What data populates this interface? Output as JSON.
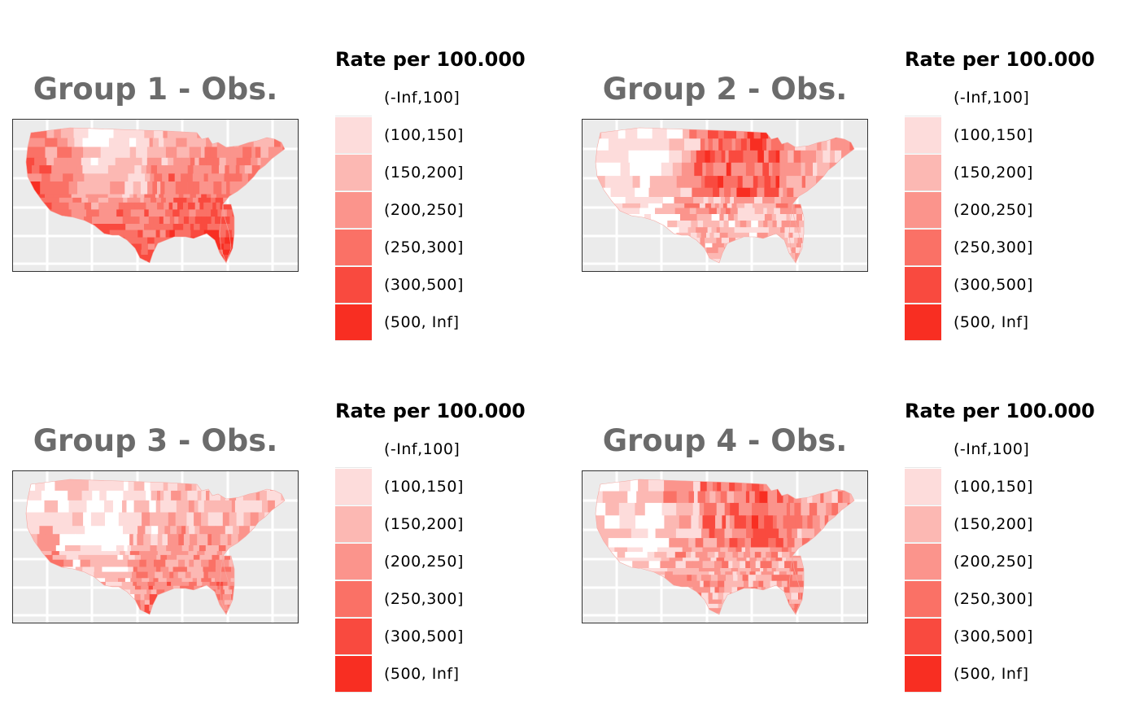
{
  "colors": {
    "background": "#ffffff",
    "panel_bg": "#ebebeb",
    "grid": "#ffffff",
    "title": "#6b6b6b",
    "bins": [
      "#ffffff",
      "#fddcdb",
      "#fcb8b3",
      "#fb948c",
      "#fa7166",
      "#f94a3f",
      "#f82e22"
    ]
  },
  "legend": {
    "title": "Rate per 100.000",
    "items": [
      "(-Inf,100]",
      "(100,150]",
      "(150,200]",
      "(200,250]",
      "(250,300]",
      "(300,500]",
      "(500, Inf]"
    ]
  },
  "panels": [
    {
      "title": "Group 1 - Obs.",
      "pattern": "south-west-high"
    },
    {
      "title": "Group 2 - Obs.",
      "pattern": "midwest-high"
    },
    {
      "title": "Group 3 - Obs.",
      "pattern": "southeast-high"
    },
    {
      "title": "Group 4 - Obs.",
      "pattern": "midwest-high-mixed"
    }
  ]
}
